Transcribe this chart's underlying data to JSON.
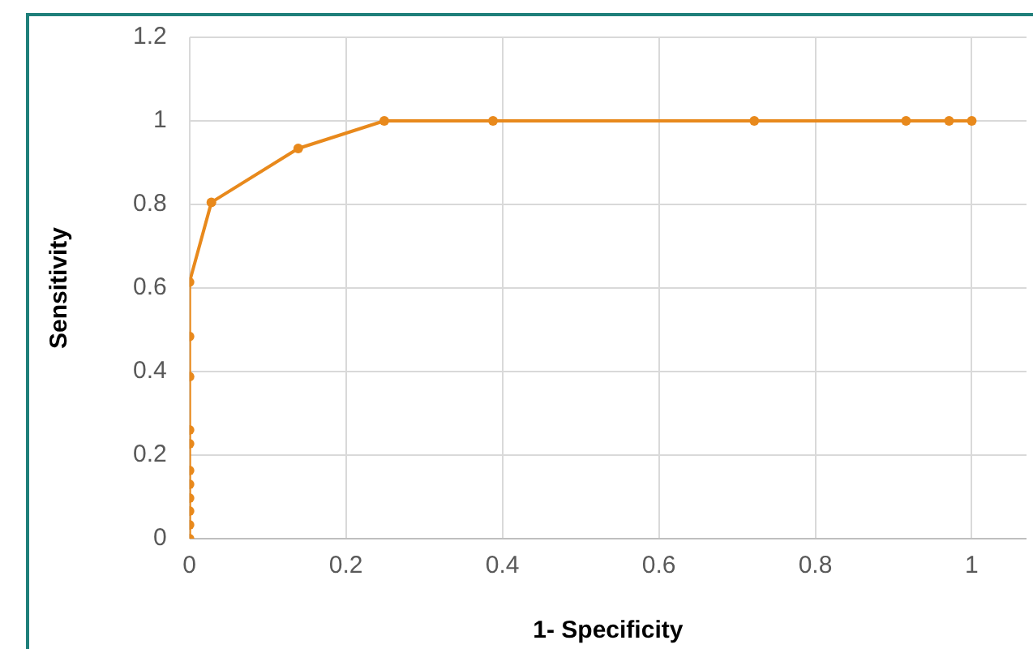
{
  "chart_data": {
    "type": "line",
    "xlabel": "1- Specificity",
    "ylabel": "Sensitivity",
    "x": [
      0,
      0,
      0,
      0,
      0,
      0,
      0,
      0,
      0,
      0,
      0,
      0.028,
      0.139,
      0.249,
      0.388,
      0.722,
      0.916,
      0.971,
      1
    ],
    "series": [
      {
        "color": "#e8891c",
        "values": [
          0,
          0.033,
          0.066,
          0.097,
          0.13,
          0.163,
          0.227,
          0.26,
          0.388,
          0.484,
          0.614,
          0.805,
          0.934,
          1,
          1,
          1,
          1,
          1,
          1
        ]
      }
    ],
    "xlim": [
      0,
      1.07
    ],
    "xticks": [
      0,
      0.2,
      0.4,
      0.6,
      0.8,
      1
    ],
    "ylim": [
      0,
      1.2
    ],
    "yticks": [
      0,
      0.2,
      0.4,
      0.6,
      0.8,
      1,
      1.2
    ],
    "grid": true,
    "marker": "circle",
    "line_style": "solid",
    "legend": false
  }
}
